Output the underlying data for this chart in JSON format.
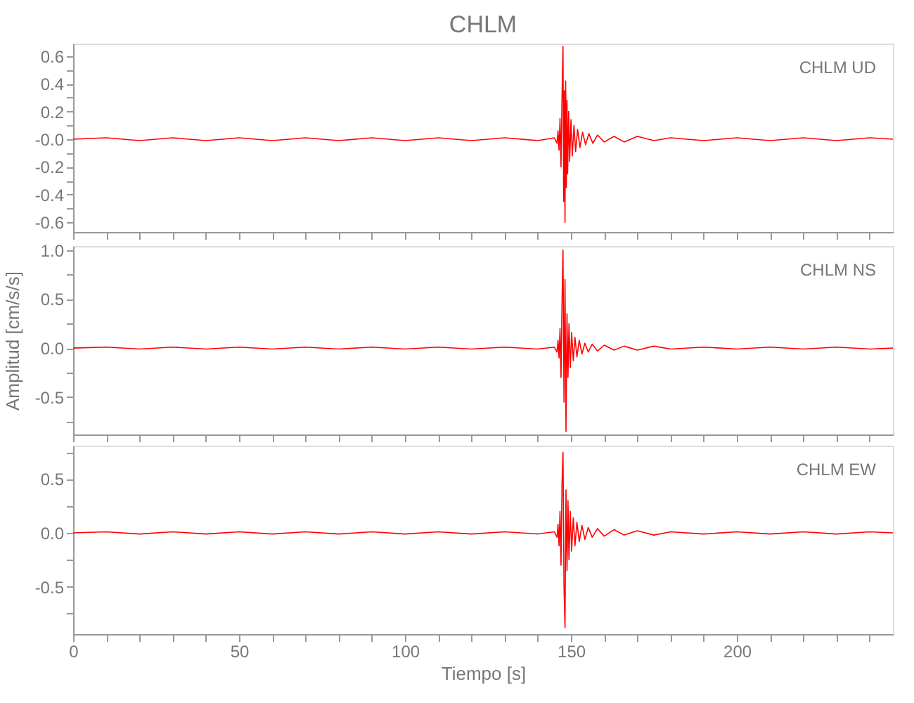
{
  "chart_data": [
    {
      "type": "line",
      "title": "CHLM",
      "annotations": [
        "CHLM   UD"
      ],
      "tick_labels": "y",
      "grid": false,
      "xlim": [
        0,
        247
      ],
      "ylim": [
        -0.67,
        0.69
      ],
      "xticks": [
        0,
        {
          "value": 10,
          "label": null
        },
        {
          "value": 20,
          "label": null
        },
        {
          "value": 30,
          "label": null
        },
        {
          "value": 40,
          "label": null
        },
        50,
        {
          "value": 60,
          "label": null
        },
        {
          "value": 70,
          "label": null
        },
        {
          "value": 80,
          "label": null
        },
        {
          "value": 90,
          "label": null
        },
        100,
        {
          "value": 110,
          "label": null
        },
        {
          "value": 120,
          "label": null
        },
        {
          "value": 130,
          "label": null
        },
        {
          "value": 140,
          "label": null
        },
        150,
        {
          "value": 160,
          "label": null
        },
        {
          "value": 170,
          "label": null
        },
        {
          "value": 180,
          "label": null
        },
        {
          "value": 190,
          "label": null
        },
        200,
        {
          "value": 210,
          "label": null
        },
        {
          "value": 220,
          "label": null
        },
        {
          "value": 230,
          "label": null
        },
        {
          "value": 240,
          "label": null
        }
      ],
      "yticks": [
        -0.6,
        {
          "value": -0.5,
          "label": null
        },
        -0.4,
        {
          "value": -0.3,
          "label": null
        },
        -0.2,
        {
          "value": -0.1,
          "label": null
        },
        {
          "value": 0,
          "label": "-0.0"
        },
        {
          "value": 0.1,
          "label": null
        },
        0.2,
        {
          "value": 0.3,
          "label": null
        },
        0.4,
        {
          "value": 0.5,
          "label": null
        },
        0.6
      ],
      "series": [
        {
          "color": "#ff0000",
          "x": [
            0,
            10,
            20,
            30,
            40,
            50,
            60,
            70,
            80,
            90,
            100,
            110,
            120,
            130,
            140,
            145,
            145.8,
            146.1,
            146.4,
            146.7,
            147.0,
            147.3,
            147.6,
            147.8,
            148.0,
            148.2,
            148.4,
            148.6,
            148.8,
            149.0,
            149.3,
            149.6,
            150.0,
            150.4,
            150.9,
            151.4,
            152.0,
            152.7,
            153.5,
            154.4,
            155.4,
            156.6,
            158,
            160,
            163,
            166,
            170,
            175,
            180,
            190,
            200,
            210,
            220,
            230,
            240,
            247
          ],
          "values": [
            0.0,
            0.01,
            -0.01,
            0.01,
            -0.01,
            0.01,
            -0.01,
            0.01,
            -0.01,
            0.01,
            -0.01,
            0.01,
            -0.01,
            0.01,
            -0.01,
            0.01,
            -0.03,
            0.06,
            -0.08,
            0.15,
            -0.2,
            0.3,
            0.67,
            -0.45,
            0.35,
            -0.6,
            0.42,
            -0.35,
            0.28,
            -0.25,
            0.2,
            -0.16,
            0.14,
            -0.12,
            0.1,
            -0.09,
            0.07,
            -0.06,
            0.05,
            -0.04,
            0.04,
            -0.03,
            0.03,
            -0.02,
            0.02,
            -0.02,
            0.02,
            -0.01,
            0.01,
            -0.01,
            0.01,
            -0.01,
            0.01,
            -0.01,
            0.01,
            0.0
          ]
        }
      ]
    },
    {
      "type": "line",
      "annotations": [
        "CHLM   NS"
      ],
      "ylabel": "Amplitud [cm/s/s]",
      "tick_labels": "y",
      "grid": false,
      "xlim": [
        0,
        247
      ],
      "ylim": [
        -0.88,
        1.04
      ],
      "xticks": [
        0,
        {
          "value": 10,
          "label": null
        },
        {
          "value": 20,
          "label": null
        },
        {
          "value": 30,
          "label": null
        },
        {
          "value": 40,
          "label": null
        },
        50,
        {
          "value": 60,
          "label": null
        },
        {
          "value": 70,
          "label": null
        },
        {
          "value": 80,
          "label": null
        },
        {
          "value": 90,
          "label": null
        },
        100,
        {
          "value": 110,
          "label": null
        },
        {
          "value": 120,
          "label": null
        },
        {
          "value": 130,
          "label": null
        },
        {
          "value": 140,
          "label": null
        },
        150,
        {
          "value": 160,
          "label": null
        },
        {
          "value": 170,
          "label": null
        },
        {
          "value": 180,
          "label": null
        },
        {
          "value": 190,
          "label": null
        },
        200,
        {
          "value": 210,
          "label": null
        },
        {
          "value": 220,
          "label": null
        },
        {
          "value": 230,
          "label": null
        },
        {
          "value": 240,
          "label": null
        }
      ],
      "yticks": [
        {
          "value": -0.75,
          "label": null
        },
        -0.5,
        {
          "value": -0.25,
          "label": null
        },
        {
          "value": 0,
          "label": "0.0"
        },
        {
          "value": 0.25,
          "label": null
        },
        0.5,
        {
          "value": 0.75,
          "label": null
        },
        {
          "value": 1,
          "label": "1.0"
        }
      ],
      "series": [
        {
          "color": "#ff0000",
          "x": [
            0,
            10,
            20,
            30,
            40,
            50,
            60,
            70,
            80,
            90,
            100,
            110,
            120,
            130,
            140,
            145,
            145.8,
            146.1,
            146.4,
            146.7,
            147.0,
            147.3,
            147.6,
            147.9,
            148.2,
            148.5,
            148.8,
            149.1,
            149.4,
            149.8,
            150.2,
            150.7,
            151.2,
            151.8,
            152.5,
            153.3,
            154.2,
            155.2,
            156.4,
            158,
            160,
            163,
            166,
            170,
            175,
            180,
            190,
            200,
            210,
            220,
            230,
            240,
            247
          ],
          "values": [
            0.0,
            0.01,
            -0.01,
            0.01,
            -0.01,
            0.01,
            -0.01,
            0.01,
            -0.01,
            0.01,
            -0.01,
            0.01,
            -0.01,
            0.01,
            -0.01,
            0.01,
            -0.04,
            0.08,
            -0.1,
            0.2,
            -0.3,
            0.45,
            1.0,
            -0.55,
            0.7,
            -0.85,
            0.35,
            -0.3,
            0.25,
            -0.2,
            0.16,
            -0.13,
            0.11,
            -0.09,
            0.08,
            -0.06,
            0.05,
            -0.04,
            0.04,
            -0.03,
            0.03,
            -0.02,
            0.02,
            -0.02,
            0.02,
            -0.01,
            0.01,
            -0.01,
            0.01,
            -0.01,
            0.01,
            -0.01,
            0.0
          ]
        }
      ]
    },
    {
      "type": "line",
      "annotations": [
        "CHLM   EW"
      ],
      "xlabel": "Tiempo [s]",
      "grid": false,
      "xlim": [
        0,
        247
      ],
      "ylim": [
        -0.94,
        0.81
      ],
      "xticks": [
        0,
        {
          "value": 10,
          "label": null
        },
        {
          "value": 20,
          "label": null
        },
        {
          "value": 30,
          "label": null
        },
        {
          "value": 40,
          "label": null
        },
        50,
        {
          "value": 60,
          "label": null
        },
        {
          "value": 70,
          "label": null
        },
        {
          "value": 80,
          "label": null
        },
        {
          "value": 90,
          "label": null
        },
        100,
        {
          "value": 110,
          "label": null
        },
        {
          "value": 120,
          "label": null
        },
        {
          "value": 130,
          "label": null
        },
        {
          "value": 140,
          "label": null
        },
        150,
        {
          "value": 160,
          "label": null
        },
        {
          "value": 170,
          "label": null
        },
        {
          "value": 180,
          "label": null
        },
        {
          "value": 190,
          "label": null
        },
        200,
        {
          "value": 210,
          "label": null
        },
        {
          "value": 220,
          "label": null
        },
        {
          "value": 230,
          "label": null
        },
        {
          "value": 240,
          "label": null
        }
      ],
      "yticks": [
        {
          "value": -0.75,
          "label": null
        },
        -0.5,
        {
          "value": -0.25,
          "label": null
        },
        {
          "value": 0,
          "label": "0.0"
        },
        {
          "value": 0.25,
          "label": null
        },
        0.5,
        {
          "value": 0.75,
          "label": null
        }
      ],
      "series": [
        {
          "color": "#ff0000",
          "x": [
            0,
            10,
            20,
            30,
            40,
            50,
            60,
            70,
            80,
            90,
            100,
            110,
            120,
            130,
            140,
            145,
            145.8,
            146.1,
            146.4,
            146.7,
            147.0,
            147.3,
            147.6,
            147.9,
            148.2,
            148.5,
            148.8,
            149.1,
            149.4,
            149.8,
            150.2,
            150.7,
            151.2,
            151.8,
            152.5,
            153.3,
            154.2,
            155.2,
            156.4,
            158,
            160,
            163,
            166,
            170,
            175,
            180,
            190,
            200,
            210,
            220,
            230,
            240,
            247
          ],
          "values": [
            0.0,
            0.01,
            -0.01,
            0.01,
            -0.01,
            0.01,
            -0.01,
            0.01,
            -0.01,
            0.01,
            -0.01,
            0.01,
            -0.01,
            0.01,
            -0.01,
            0.01,
            -0.04,
            0.08,
            -0.12,
            0.2,
            -0.3,
            0.45,
            0.75,
            -0.5,
            -0.88,
            0.4,
            -0.35,
            0.3,
            -0.25,
            0.2,
            -0.17,
            0.14,
            -0.12,
            0.1,
            -0.08,
            0.07,
            -0.06,
            0.05,
            -0.04,
            0.04,
            -0.03,
            0.03,
            -0.02,
            0.02,
            -0.02,
            0.01,
            -0.01,
            0.01,
            -0.01,
            0.01,
            -0.01,
            0.01,
            0.0
          ]
        }
      ]
    }
  ]
}
